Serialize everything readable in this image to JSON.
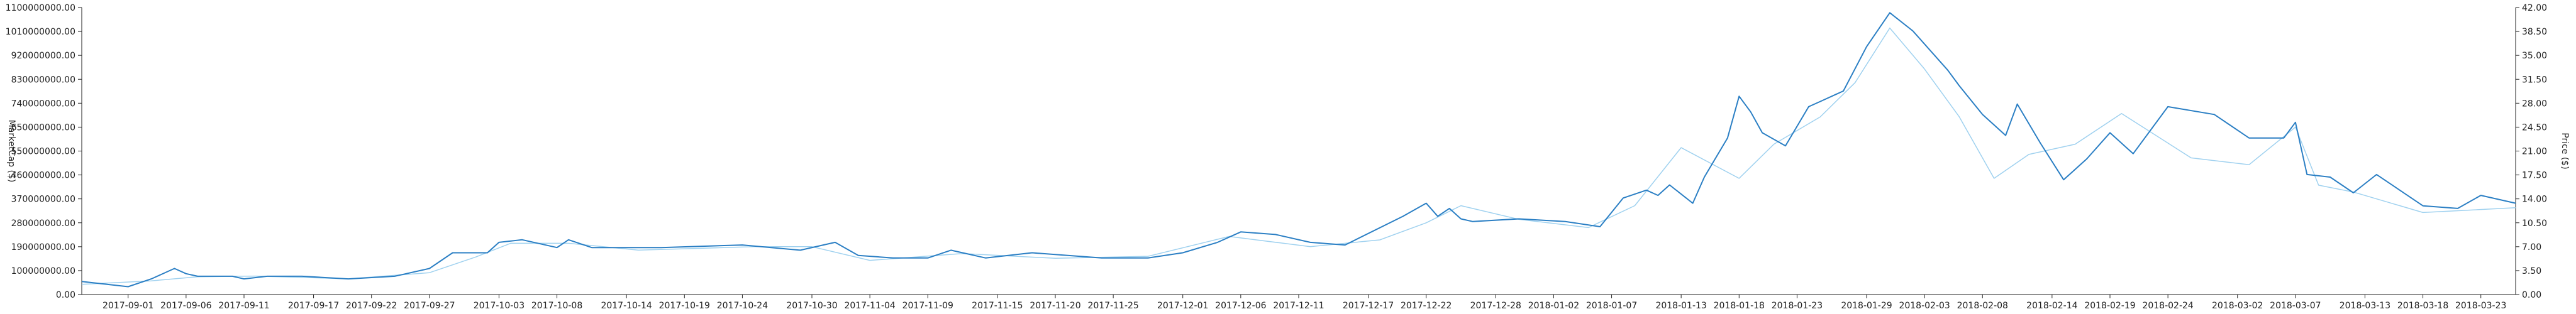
{
  "chart_data": {
    "type": "line",
    "title": "",
    "xlabel": "",
    "ylabel_left": "MarketCap ($)",
    "ylabel_right": "Price ($)",
    "x_start": "2017-08-28",
    "x_end": "2018-03-26",
    "x_ticks": [
      "2017-09-01",
      "2017-09-06",
      "2017-09-11",
      "2017-09-17",
      "2017-09-22",
      "2017-09-27",
      "2017-10-03",
      "2017-10-08",
      "2017-10-14",
      "2017-10-19",
      "2017-10-24",
      "2017-10-30",
      "2017-11-04",
      "2017-11-09",
      "2017-11-15",
      "2017-11-20",
      "2017-11-25",
      "2017-12-01",
      "2017-12-06",
      "2017-12-11",
      "2017-12-17",
      "2017-12-22",
      "2017-12-28",
      "2018-01-02",
      "2018-01-07",
      "2018-01-13",
      "2018-01-18",
      "2018-01-23",
      "2018-01-29",
      "2018-02-03",
      "2018-02-08",
      "2018-02-14",
      "2018-02-19",
      "2018-02-24",
      "2018-03-02",
      "2018-03-07",
      "2018-03-13",
      "2018-03-18",
      "2018-03-23"
    ],
    "y_left_ticks": [
      "0.00",
      "100000000.00",
      "190000000.00",
      "280000000.00",
      "370000000.00",
      "460000000.00",
      "550000000.00",
      "650000000.00",
      "740000000.00",
      "830000000.00",
      "920000000.00",
      "1010000000.00",
      "1100000000.00"
    ],
    "y_right_ticks": [
      "0.00",
      "3.50",
      "7.00",
      "10.50",
      "14.00",
      "17.50",
      "21.00",
      "24.50",
      "28.00",
      "31.50",
      "35.00",
      "38.50",
      "42.00"
    ],
    "y_left_range": [
      0,
      1100000000
    ],
    "y_right_range": [
      0,
      42
    ],
    "grid": false,
    "colors": {
      "marketcap": "#2b7fc4",
      "price": "#9fd1ef",
      "axis": "#222222"
    },
    "series": [
      {
        "name": "MarketCap ($)",
        "axis": "left",
        "x": [
          "2017-08-28",
          "2017-09-01",
          "2017-09-03",
          "2017-09-05",
          "2017-09-06",
          "2017-09-07",
          "2017-09-10",
          "2017-09-11",
          "2017-09-13",
          "2017-09-16",
          "2017-09-20",
          "2017-09-24",
          "2017-09-27",
          "2017-09-29",
          "2017-10-02",
          "2017-10-03",
          "2017-10-05",
          "2017-10-08",
          "2017-10-09",
          "2017-10-11",
          "2017-10-13",
          "2017-10-17",
          "2017-10-24",
          "2017-10-29",
          "2017-11-01",
          "2017-11-03",
          "2017-11-06",
          "2017-11-09",
          "2017-11-11",
          "2017-11-14",
          "2017-11-18",
          "2017-11-24",
          "2017-11-28",
          "2017-12-01",
          "2017-12-04",
          "2017-12-06",
          "2017-12-09",
          "2017-12-12",
          "2017-12-15",
          "2017-12-20",
          "2017-12-22",
          "2017-12-23",
          "2017-12-24",
          "2017-12-25",
          "2017-12-26",
          "2017-12-30",
          "2018-01-03",
          "2018-01-06",
          "2018-01-08",
          "2018-01-10",
          "2018-01-11",
          "2018-01-12",
          "2018-01-14",
          "2018-01-15",
          "2018-01-17",
          "2018-01-18",
          "2018-01-19",
          "2018-01-20",
          "2018-01-22",
          "2018-01-24",
          "2018-01-25",
          "2018-01-27",
          "2018-01-29",
          "2018-01-31",
          "2018-02-02",
          "2018-02-05",
          "2018-02-06",
          "2018-02-08",
          "2018-02-10",
          "2018-02-11",
          "2018-02-13",
          "2018-02-15",
          "2018-02-17",
          "2018-02-19",
          "2018-02-21",
          "2018-02-24",
          "2018-02-28",
          "2018-03-03",
          "2018-03-06",
          "2018-03-07",
          "2018-03-08",
          "2018-03-10",
          "2018-03-12",
          "2018-03-14",
          "2018-03-18",
          "2018-03-21",
          "2018-03-23",
          "2018-03-26"
        ],
        "values": [
          50000000,
          30000000,
          60000000,
          100000000,
          80000000,
          70000000,
          70000000,
          60000000,
          70000000,
          70000000,
          60000000,
          70000000,
          100000000,
          160000000,
          160000000,
          200000000,
          210000000,
          180000000,
          210000000,
          180000000,
          180000000,
          180000000,
          190000000,
          170000000,
          200000000,
          150000000,
          140000000,
          140000000,
          170000000,
          140000000,
          160000000,
          140000000,
          140000000,
          160000000,
          200000000,
          240000000,
          230000000,
          200000000,
          190000000,
          300000000,
          350000000,
          300000000,
          330000000,
          290000000,
          280000000,
          290000000,
          280000000,
          260000000,
          370000000,
          400000000,
          380000000,
          420000000,
          350000000,
          450000000,
          600000000,
          760000000,
          700000000,
          620000000,
          570000000,
          720000000,
          740000000,
          780000000,
          950000000,
          1080000000,
          1010000000,
          860000000,
          800000000,
          690000000,
          610000000,
          730000000,
          580000000,
          440000000,
          520000000,
          620000000,
          540000000,
          720000000,
          690000000,
          600000000,
          600000000,
          660000000,
          460000000,
          450000000,
          390000000,
          460000000,
          340000000,
          330000000,
          380000000,
          350000000
        ],
        "note": ""
      },
      {
        "name": "Price ($)",
        "axis": "right",
        "x": [
          "2017-08-28",
          "2017-09-03",
          "2017-09-07",
          "2017-09-12",
          "2017-09-20",
          "2017-09-27",
          "2017-10-01",
          "2017-10-04",
          "2017-10-09",
          "2017-10-15",
          "2017-10-25",
          "2017-10-30",
          "2017-11-04",
          "2017-11-12",
          "2017-11-20",
          "2017-11-28",
          "2017-12-05",
          "2017-12-12",
          "2017-12-18",
          "2017-12-22",
          "2017-12-25",
          "2017-12-30",
          "2018-01-05",
          "2018-01-09",
          "2018-01-13",
          "2018-01-18",
          "2018-01-21",
          "2018-01-25",
          "2018-01-28",
          "2018-01-31",
          "2018-02-03",
          "2018-02-06",
          "2018-02-09",
          "2018-02-12",
          "2018-02-16",
          "2018-02-20",
          "2018-02-26",
          "2018-03-03",
          "2018-03-07",
          "2018-03-09",
          "2018-03-12",
          "2018-03-18",
          "2018-03-26"
        ],
        "values": [
          1.5,
          2.0,
          2.6,
          2.7,
          2.3,
          3.2,
          5.5,
          7.5,
          7.5,
          6.5,
          7.0,
          7.0,
          5.0,
          6.0,
          5.3,
          5.6,
          8.5,
          7.0,
          8.0,
          10.5,
          13.0,
          11.0,
          9.8,
          13.0,
          21.5,
          17.0,
          22.0,
          26.0,
          31.0,
          39.0,
          33.0,
          26.0,
          17.0,
          20.5,
          22.0,
          26.5,
          20.0,
          19.0,
          24.5,
          16.0,
          15.0,
          12.0,
          12.7
        ],
        "note": ""
      }
    ]
  }
}
